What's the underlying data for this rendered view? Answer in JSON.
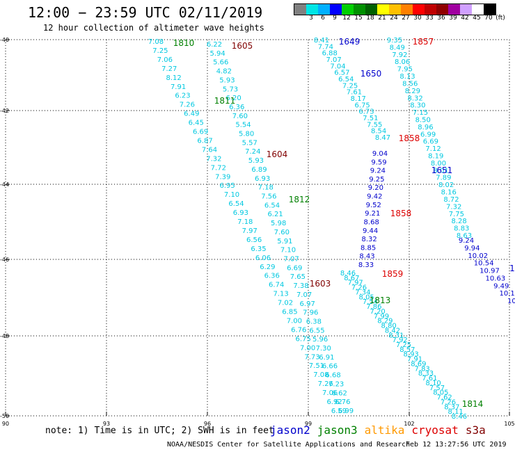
{
  "header": {
    "title": "12:00 − 23:59 UTC 02/11/2019",
    "subtitle": "12 hour collection of altimeter wave heights"
  },
  "colorbar": {
    "colors": [
      "#808080",
      "#00e5e5",
      "#00b0ff",
      "#0000ff",
      "#00d000",
      "#009000",
      "#006000",
      "#ffff00",
      "#ffc000",
      "#ff8000",
      "#ff0000",
      "#c00000",
      "#900000",
      "#a000a0",
      "#d0a0ff",
      "#ffffff",
      "#000000"
    ],
    "tick_labels": [
      "3",
      "6",
      "9",
      "12",
      "15",
      "18",
      "21",
      "24",
      "27",
      "30",
      "33",
      "36",
      "39",
      "42",
      "45",
      "70",
      "(ft)"
    ]
  },
  "axes": {
    "x_labels": [
      "90",
      "93",
      "96",
      "99",
      "102",
      "105"
    ],
    "y_labels": [
      "-40",
      "-42",
      "-44",
      "-46",
      "-48",
      "-50"
    ]
  },
  "footer": {
    "note": "note: 1) Time is in UTC; 2) SWH is in feet",
    "satellites": [
      {
        "name": "jason2",
        "color": "#0000cc"
      },
      {
        "name": "jason3",
        "color": "#008000"
      },
      {
        "name": "altika",
        "color": "#ff9900"
      },
      {
        "name": "cryosat",
        "color": "#dd0000"
      },
      {
        "name": "s3a",
        "color": "#800000"
      }
    ],
    "credit": "NOAA/NESDIS Center for Satellite Applications and Research",
    "timestamp": "Feb 12 13:27:56 UTC 2019"
  },
  "tracks": [
    {
      "color": "#00c8e0",
      "values": [
        "7.08",
        "7.25",
        "7.06",
        "7.27",
        "8.12",
        "7.91",
        "6.23",
        "7.26",
        "6.49",
        "6.45",
        "6.69",
        "6.87",
        "7.64",
        "7.32",
        "7.72",
        "7.39",
        "6.95",
        "7.10",
        "6.54",
        "6.93",
        "7.18",
        "7.97",
        "6.56",
        "6.35",
        "6.06",
        "6.29",
        "6.36",
        "6.74",
        "7.13",
        "7.02",
        "6.85",
        "7.00",
        "6.76",
        "6.75",
        "7.00",
        "7.73",
        "7.51",
        "7.08",
        "7.26",
        "7.06",
        "6.92",
        "6.59"
      ]
    },
    {
      "color": "#00c8e0",
      "values": [
        "6.22",
        "5.94",
        "5.66",
        "4.82",
        "5.93",
        "5.73",
        "6.20",
        "6.36",
        "7.60",
        "5.54",
        "5.80",
        "5.57",
        "7.24",
        "5.93",
        "6.89",
        "6.93",
        "7.18",
        "7.56",
        "6.54",
        "6.21",
        "5.98",
        "7.60",
        "5.91",
        "7.10",
        "7.07",
        "6.69",
        "7.65",
        "7.38",
        "7.07",
        "6.97",
        "7.96",
        "6.38",
        "6.55",
        "5.96",
        "7.30",
        "6.91",
        "6.66",
        "6.68",
        "7.23",
        "6.62",
        "6.76",
        "6.99"
      ]
    },
    {
      "color": "#00c8e0",
      "values": [
        "8.41",
        "7.74",
        "6.88",
        "7.07",
        "7.04",
        "6.57",
        "6.54",
        "7.25",
        "7.61",
        "8.17",
        "6.75",
        "6.73",
        "7.51",
        "7.55",
        "8.54",
        "8.47"
      ]
    },
    {
      "color": "#00c8e0",
      "values": [
        "9.35",
        "8.49",
        "7.92",
        "8.06",
        "7.95",
        "8.13",
        "8.56",
        "8.29",
        "8.32",
        "8.30",
        "7.15",
        "8.50",
        "8.96",
        "6.99",
        "6.69",
        "7.12",
        "8.19",
        "8.00",
        "8.01",
        "7.89",
        "8.02",
        "8.16",
        "8.72",
        "7.32",
        "7.75",
        "8.28",
        "8.83",
        "8.63"
      ]
    },
    {
      "color": "#00c8e0",
      "values": [
        "8.46",
        "8.67",
        "7.97",
        "7.26",
        "7.34",
        "8.05",
        "7.54",
        "7.86",
        "7.20",
        "7.99",
        "8.29",
        "8.80",
        "8.42",
        "8.31",
        "7.92",
        "7.25",
        "8.57",
        "8.93",
        "7.91",
        "8.69",
        "7.83",
        "8.33",
        "7.61",
        "8.10",
        "7.57",
        "8.05",
        "7.62",
        "7.26",
        "8.37",
        "8.11",
        "8.46"
      ]
    },
    {
      "color": "#0000cc",
      "values": [
        "9.04",
        "9.59",
        "9.24",
        "9.25",
        "9.20",
        "9.42",
        "9.52",
        "9.21",
        "8.68",
        "9.44",
        "8.32",
        "8.85",
        "8.43",
        "8.33"
      ]
    },
    {
      "color": "#0000cc",
      "values": [
        "9.24",
        "9.94",
        "10.02",
        "10.54",
        "10.97",
        "10.63",
        "9.49",
        "10.1",
        "10."
      ]
    }
  ],
  "labels": [
    {
      "text": "1810",
      "color": "#008000"
    },
    {
      "text": "1605",
      "color": "#800000"
    },
    {
      "text": "1649",
      "color": "#0000cc"
    },
    {
      "text": "1857",
      "color": "#dd0000"
    },
    {
      "text": "1650",
      "color": "#0000cc"
    },
    {
      "text": "1811",
      "color": "#008000"
    },
    {
      "text": "1858",
      "color": "#dd0000"
    },
    {
      "text": "1604",
      "color": "#800000"
    },
    {
      "text": "1651",
      "color": "#0000cc"
    },
    {
      "text": "1812",
      "color": "#008000"
    },
    {
      "text": "1858",
      "color": "#dd0000"
    },
    {
      "text": "1859",
      "color": "#dd0000"
    },
    {
      "text": "1603",
      "color": "#800000"
    },
    {
      "text": "1813",
      "color": "#008000"
    },
    {
      "text": "1814",
      "color": "#008000"
    },
    {
      "text": "1",
      "color": "#0000cc"
    }
  ]
}
